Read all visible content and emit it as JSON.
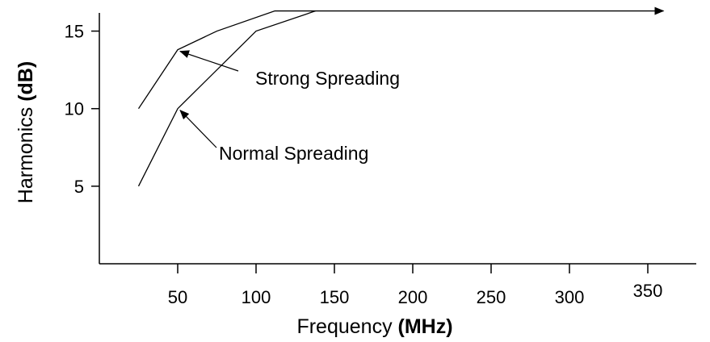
{
  "chart_data": {
    "type": "line",
    "xlabel": {
      "text": "Frequency ",
      "unit": "(MHz)"
    },
    "ylabel": {
      "text": "Harmonics ",
      "unit": "(dB)"
    },
    "xlim": [
      0,
      400
    ],
    "ylim": [
      0,
      16.5
    ],
    "x_ticks": [
      50,
      100,
      150,
      200,
      250,
      300,
      350
    ],
    "y_ticks": [
      5,
      10,
      15
    ],
    "grid": false,
    "series": [
      {
        "name": "Strong Spreading",
        "points": [
          [
            25,
            10
          ],
          [
            50,
            13.8
          ],
          [
            75,
            15
          ],
          [
            112,
            16.3
          ],
          [
            360,
            16.3
          ]
        ]
      },
      {
        "name": "Normal Spreading",
        "points": [
          [
            25,
            5
          ],
          [
            50,
            10
          ],
          [
            100,
            15
          ],
          [
            138,
            16.3
          ]
        ]
      }
    ],
    "annotations": [
      {
        "text": "Strong Spreading",
        "target": [
          50,
          13.8
        ]
      },
      {
        "text": "Normal Spreading",
        "target": [
          50,
          10
        ]
      }
    ]
  }
}
